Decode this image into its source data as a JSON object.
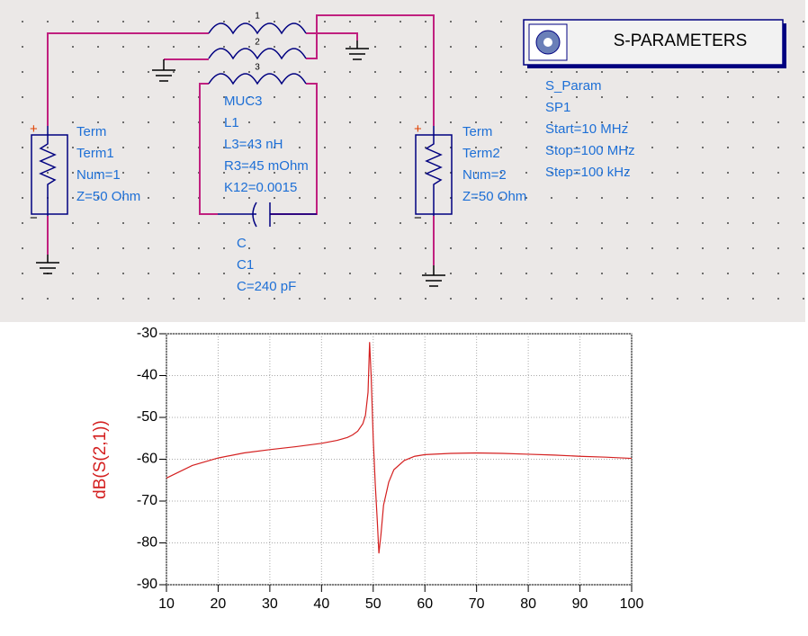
{
  "schematic": {
    "inductor_numbers": [
      "1",
      "2",
      "3"
    ],
    "muc": [
      "MUC3",
      "L1",
      "L3=43 nH",
      "R3=45 mOhm",
      "K12=0.0015"
    ],
    "term1": {
      "pins": [
        "+",
        "−"
      ],
      "lines": [
        "Term",
        "Term1",
        "Num=1",
        "Z=50 Ohm"
      ]
    },
    "term2": {
      "pins": [
        "+",
        "−"
      ],
      "lines": [
        "Term",
        "Term2",
        "Num=2",
        "Z=50 Ohm"
      ]
    },
    "capacitor": [
      "C",
      "C1",
      "C=240 pF"
    ],
    "sp_block": {
      "title": "S-PARAMETERS",
      "lines": [
        "S_Param",
        "SP1",
        "Start=10 MHz",
        "Stop=100 MHz",
        "Step=100 kHz"
      ]
    }
  },
  "chart_data": {
    "type": "line",
    "ylabel": "dB(S(2,1))",
    "color": "#d42020",
    "x": [
      10,
      15,
      20,
      25,
      30,
      35,
      40,
      43,
      45,
      46,
      47,
      48,
      48.5,
      49,
      49.3,
      49.6,
      50,
      50.4,
      50.8,
      51.1,
      51.5,
      52,
      53,
      54,
      56,
      58,
      60,
      65,
      70,
      75,
      80,
      85,
      90,
      95,
      100
    ],
    "values": [
      -64.5,
      -61.5,
      -59.7,
      -58.5,
      -57.7,
      -57,
      -56.2,
      -55.5,
      -54.8,
      -54.2,
      -53.3,
      -51.5,
      -49.5,
      -44,
      -32,
      -40,
      -55,
      -66,
      -75,
      -82.5,
      -78,
      -71,
      -65.5,
      -62.5,
      -60.3,
      -59.3,
      -58.9,
      -58.6,
      -58.5,
      -58.6,
      -58.8,
      -59,
      -59.3,
      -59.5,
      -59.8
    ],
    "xlim": [
      10,
      100
    ],
    "ylim": [
      -90,
      -30
    ],
    "xticks": [
      10,
      20,
      30,
      40,
      50,
      60,
      70,
      80,
      90,
      100
    ],
    "yticks": [
      -90,
      -80,
      -70,
      -60,
      -50,
      -40,
      -30
    ],
    "grid": true
  }
}
